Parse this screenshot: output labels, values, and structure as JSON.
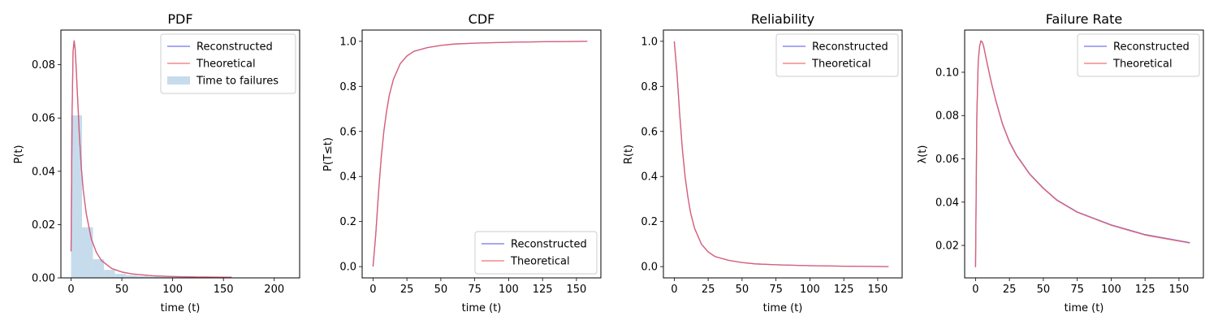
{
  "colors": {
    "reconstructed": "#5b5bf0",
    "theoretical": "#f05b5b",
    "histogram": "#c6dcec"
  },
  "chart_data": [
    {
      "type": "line",
      "title": "PDF",
      "xlabel": "time (t)",
      "ylabel": "P(t)",
      "xlim": [
        -10,
        225
      ],
      "ylim": [
        0,
        0.093
      ],
      "xticks": [
        0,
        50,
        100,
        150,
        200
      ],
      "yticks": [
        0.0,
        0.02,
        0.04,
        0.06,
        0.08
      ],
      "ytick_labels": [
        "0.00",
        "0.02",
        "0.04",
        "0.06",
        "0.08"
      ],
      "legend_position": "top-right",
      "series": [
        {
          "name": "Reconstructed",
          "kind": "line",
          "x": [
            0,
            1,
            2,
            3,
            4,
            5,
            6,
            7,
            8,
            10,
            12,
            15,
            20,
            25,
            30,
            40,
            50,
            60,
            80,
            100,
            125,
            158
          ],
          "y": [
            0.01,
            0.062,
            0.085,
            0.089,
            0.086,
            0.079,
            0.071,
            0.063,
            0.055,
            0.042,
            0.033,
            0.024,
            0.0145,
            0.0095,
            0.0065,
            0.0035,
            0.0022,
            0.0015,
            0.0008,
            0.0005,
            0.0003,
            0.0002
          ]
        },
        {
          "name": "Theoretical",
          "kind": "line",
          "x": [
            0,
            1,
            2,
            3,
            4,
            5,
            6,
            7,
            8,
            10,
            12,
            15,
            20,
            25,
            30,
            40,
            50,
            60,
            80,
            100,
            125,
            158
          ],
          "y": [
            0.01,
            0.062,
            0.085,
            0.089,
            0.086,
            0.079,
            0.071,
            0.063,
            0.055,
            0.042,
            0.033,
            0.024,
            0.0145,
            0.0095,
            0.0065,
            0.0035,
            0.0022,
            0.0015,
            0.0008,
            0.0005,
            0.0003,
            0.0002
          ]
        },
        {
          "name": "Time to failures",
          "kind": "histogram",
          "bin_edges": [
            0,
            10.8,
            21.6,
            32.4,
            43.2,
            54,
            64.8,
            75.6,
            86.4,
            97.2,
            108,
            118.8,
            129.6,
            140.4,
            151.2,
            162,
            172.8,
            183.6,
            194.4,
            205.2,
            216
          ],
          "values": [
            0.061,
            0.019,
            0.007,
            0.003,
            0.0015,
            0.001,
            0.0007,
            0.0005,
            0.0004,
            0.0003,
            0.0002,
            0.0002,
            0.0001,
            0.0001,
            0.0001,
            5e-05,
            5e-05,
            3e-05,
            3e-05,
            2e-05
          ]
        }
      ]
    },
    {
      "type": "line",
      "title": "CDF",
      "xlabel": "time (t)",
      "ylabel": "P(T≤t)",
      "xlim": [
        -8,
        168
      ],
      "ylim": [
        -0.05,
        1.05
      ],
      "xticks": [
        0,
        25,
        50,
        75,
        100,
        125,
        150
      ],
      "yticks": [
        0.0,
        0.2,
        0.4,
        0.6,
        0.8,
        1.0
      ],
      "ytick_labels": [
        "0.0",
        "0.2",
        "0.4",
        "0.6",
        "0.8",
        "1.0"
      ],
      "legend_position": "bottom-right",
      "series": [
        {
          "name": "Reconstructed",
          "x": [
            0,
            2,
            4,
            6,
            8,
            10,
            12,
            15,
            20,
            25,
            30,
            40,
            50,
            60,
            75,
            100,
            125,
            158
          ],
          "y": [
            0.0,
            0.14,
            0.32,
            0.48,
            0.6,
            0.69,
            0.76,
            0.83,
            0.9,
            0.935,
            0.955,
            0.972,
            0.982,
            0.988,
            0.992,
            0.996,
            0.998,
            1.0
          ]
        },
        {
          "name": "Theoretical",
          "x": [
            0,
            2,
            4,
            6,
            8,
            10,
            12,
            15,
            20,
            25,
            30,
            40,
            50,
            60,
            75,
            100,
            125,
            158
          ],
          "y": [
            0.0,
            0.14,
            0.32,
            0.48,
            0.6,
            0.69,
            0.76,
            0.83,
            0.9,
            0.935,
            0.955,
            0.972,
            0.982,
            0.988,
            0.992,
            0.996,
            0.998,
            1.0
          ]
        }
      ]
    },
    {
      "type": "line",
      "title": "Reliability",
      "xlabel": "time (t)",
      "ylabel": "R(t)",
      "xlim": [
        -8,
        168
      ],
      "ylim": [
        -0.05,
        1.05
      ],
      "xticks": [
        0,
        25,
        50,
        75,
        100,
        125,
        150
      ],
      "yticks": [
        0.0,
        0.2,
        0.4,
        0.6,
        0.8,
        1.0
      ],
      "ytick_labels": [
        "0.0",
        "0.2",
        "0.4",
        "0.6",
        "0.8",
        "1.0"
      ],
      "legend_position": "top-right",
      "series": [
        {
          "name": "Reconstructed",
          "x": [
            0,
            2,
            4,
            6,
            8,
            10,
            12,
            15,
            20,
            25,
            30,
            40,
            50,
            60,
            75,
            100,
            125,
            158
          ],
          "y": [
            1.0,
            0.86,
            0.68,
            0.52,
            0.4,
            0.31,
            0.24,
            0.17,
            0.1,
            0.065,
            0.045,
            0.028,
            0.018,
            0.012,
            0.008,
            0.004,
            0.002,
            0.0
          ]
        },
        {
          "name": "Theoretical",
          "x": [
            0,
            2,
            4,
            6,
            8,
            10,
            12,
            15,
            20,
            25,
            30,
            40,
            50,
            60,
            75,
            100,
            125,
            158
          ],
          "y": [
            1.0,
            0.86,
            0.68,
            0.52,
            0.4,
            0.31,
            0.24,
            0.17,
            0.1,
            0.065,
            0.045,
            0.028,
            0.018,
            0.012,
            0.008,
            0.004,
            0.002,
            0.0
          ]
        }
      ]
    },
    {
      "type": "line",
      "title": "Failure Rate",
      "xlabel": "time (t)",
      "ylabel": "λ(t)",
      "xlim": [
        -8,
        168
      ],
      "ylim": [
        0.005,
        0.1195
      ],
      "xticks": [
        0,
        25,
        50,
        75,
        100,
        125,
        150
      ],
      "yticks": [
        0.02,
        0.04,
        0.06,
        0.08,
        0.1
      ],
      "ytick_labels": [
        "0.02",
        "0.04",
        "0.06",
        "0.08",
        "0.10"
      ],
      "legend_position": "top-right",
      "series": [
        {
          "name": "Reconstructed",
          "x": [
            0,
            1,
            2,
            3,
            4,
            5,
            6,
            8,
            10,
            12,
            15,
            20,
            25,
            30,
            40,
            50,
            60,
            75,
            100,
            125,
            158
          ],
          "y": [
            0.01,
            0.08,
            0.105,
            0.112,
            0.1145,
            0.114,
            0.112,
            0.106,
            0.1,
            0.0945,
            0.087,
            0.076,
            0.068,
            0.062,
            0.053,
            0.0465,
            0.041,
            0.0355,
            0.0295,
            0.025,
            0.0213
          ]
        },
        {
          "name": "Theoretical",
          "x": [
            0,
            1,
            2,
            3,
            4,
            5,
            6,
            8,
            10,
            12,
            15,
            20,
            25,
            30,
            40,
            50,
            60,
            75,
            100,
            125,
            158
          ],
          "y": [
            0.01,
            0.08,
            0.105,
            0.112,
            0.1145,
            0.114,
            0.112,
            0.1058,
            0.0998,
            0.0942,
            0.0867,
            0.0757,
            0.0677,
            0.0617,
            0.0528,
            0.0463,
            0.0408,
            0.0353,
            0.0293,
            0.0248,
            0.0211
          ]
        }
      ]
    }
  ]
}
